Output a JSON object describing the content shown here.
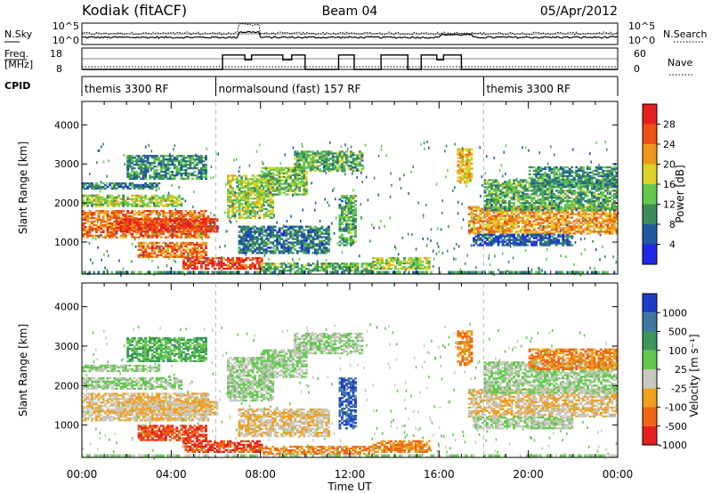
{
  "chart_data": {
    "type": "heatmap",
    "header": {
      "station": "Kodiak (fitACF)",
      "beam": "Beam 04",
      "date": "05/Apr/2012"
    },
    "noise_panel": {
      "left_label": "N.Sky",
      "right_label": "N.Search",
      "yticks_left": [
        "10^5",
        "10^0"
      ],
      "yticks_right": [
        "10^5",
        "10^0"
      ]
    },
    "freq_panel": {
      "left_label_line1": "Freq.",
      "left_label_line2": "[MHz]",
      "right_label": "Nave",
      "yticks_left": [
        18,
        8
      ],
      "yticks_right": [
        60,
        0
      ]
    },
    "cpid_panel": {
      "label": "CPID",
      "segments": [
        {
          "name": "themis 3300 RF",
          "start_h": 0,
          "end_h": 6
        },
        {
          "name": "normalsound (fast) 157 RF",
          "start_h": 6,
          "end_h": 18
        },
        {
          "name": "themis 3300 RF",
          "start_h": 18,
          "end_h": 24
        }
      ]
    },
    "x_axis": {
      "label": "Time UT",
      "range_h": [
        0,
        24
      ],
      "tick_labels": [
        "00:00",
        "04:00",
        "08:00",
        "12:00",
        "16:00",
        "20:00",
        "00:00"
      ],
      "tick_hours": [
        0,
        4,
        8,
        12,
        16,
        20,
        24
      ]
    },
    "power_panel": {
      "ylabel": "Slant Range [km]",
      "ylim": [
        180,
        4600
      ],
      "yticks": [
        1000,
        2000,
        3000,
        4000
      ],
      "colorbar_label": "Power [dB]",
      "colorbar_ticks": [
        4,
        8,
        12,
        16,
        20,
        24,
        28
      ],
      "colorbar_range": [
        0,
        32
      ],
      "colors": [
        "#1e28e6",
        "#1e5aa0",
        "#3c8c5a",
        "#64c850",
        "#dcd228",
        "#f0961e",
        "#f05014",
        "#e61e1e"
      ]
    },
    "velocity_panel": {
      "ylabel": "Slant Range [km]",
      "ylim": [
        180,
        4600
      ],
      "yticks": [
        1000,
        2000,
        3000,
        4000
      ],
      "colorbar_label": "Velocity [m s⁻¹]",
      "colorbar_ticks": [
        "1000",
        "500",
        "100",
        "25",
        "-25",
        "-100",
        "-500",
        "-1000"
      ],
      "colors": [
        "#1e3cc8",
        "#3c78a0",
        "#3c965a",
        "#64c850",
        "#c8c8c0",
        "#f0a01e",
        "#f06414",
        "#e61e1e"
      ]
    },
    "echo_regions": [
      {
        "t0": 0.0,
        "t1": 5.6,
        "r0": 1100,
        "r1": 1800,
        "p": 24,
        "v": -25
      },
      {
        "t0": 1.5,
        "t1": 6.0,
        "r0": 1250,
        "r1": 1600,
        "p": 28,
        "v": -25
      },
      {
        "t0": 0.0,
        "t1": 4.5,
        "r0": 1900,
        "r1": 2200,
        "p": 16,
        "v": 25
      },
      {
        "t0": 0.0,
        "t1": 3.5,
        "r0": 2350,
        "r1": 2500,
        "p": 8,
        "v": 25
      },
      {
        "t0": 2.0,
        "t1": 5.5,
        "r0": 2600,
        "r1": 3200,
        "p": 10,
        "v": 100
      },
      {
        "t0": 2.5,
        "t1": 5.5,
        "r0": 600,
        "r1": 1000,
        "p": 24,
        "v": -500
      },
      {
        "t0": 4.5,
        "t1": 8.0,
        "r0": 300,
        "r1": 600,
        "p": 28,
        "v": -500
      },
      {
        "t0": 8.0,
        "t1": 13.0,
        "r0": 250,
        "r1": 450,
        "p": 12,
        "v": -100
      },
      {
        "t0": 6.5,
        "t1": 8.5,
        "r0": 1600,
        "r1": 2700,
        "p": 16,
        "v": 25
      },
      {
        "t0": 8.0,
        "t1": 10.0,
        "r0": 2200,
        "r1": 2900,
        "p": 14,
        "v": 25
      },
      {
        "t0": 9.5,
        "t1": 12.5,
        "r0": 2800,
        "r1": 3300,
        "p": 12,
        "v": 25
      },
      {
        "t0": 7.0,
        "t1": 11.0,
        "r0": 700,
        "r1": 1400,
        "p": 8,
        "v": -25
      },
      {
        "t0": 11.5,
        "t1": 12.2,
        "r0": 900,
        "r1": 2200,
        "p": 12,
        "v": 1000
      },
      {
        "t0": 13.0,
        "t1": 15.5,
        "r0": 300,
        "r1": 600,
        "p": 16,
        "v": -100
      },
      {
        "t0": 16.8,
        "t1": 17.5,
        "r0": 2500,
        "r1": 3400,
        "p": 20,
        "v": -100
      },
      {
        "t0": 17.3,
        "t1": 24.0,
        "r0": 1200,
        "r1": 1900,
        "p": 22,
        "v": -25
      },
      {
        "t0": 18.0,
        "t1": 24.0,
        "r0": 1800,
        "r1": 2600,
        "p": 12,
        "v": 25
      },
      {
        "t0": 20.0,
        "t1": 24.0,
        "r0": 2400,
        "r1": 2900,
        "p": 10,
        "v": -100
      },
      {
        "t0": 17.5,
        "t1": 22.0,
        "r0": 900,
        "r1": 1200,
        "p": 6,
        "v": 25
      }
    ]
  }
}
